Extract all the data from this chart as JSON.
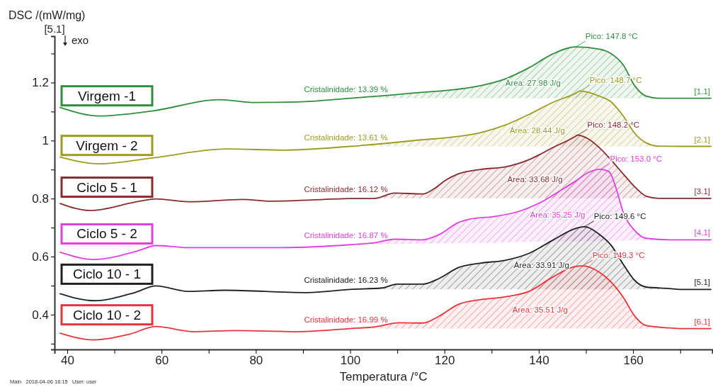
{
  "chart_data": {
    "type": "line",
    "xlabel": "Temperatura /°C",
    "ylabel": "DSC /(mW/mg)",
    "xlim": [
      37.3,
      176.8
    ],
    "ylim": [
      0.28,
      1.36
    ],
    "xticks": [
      40,
      {
        "value": 50,
        "label": null
      },
      60,
      {
        "value": 70,
        "label": null
      },
      80,
      {
        "value": 90,
        "label": null
      },
      100,
      {
        "value": 110,
        "label": null
      },
      120,
      {
        "value": 130,
        "label": null
      },
      140,
      {
        "value": 150,
        "label": null
      },
      160,
      {
        "value": 170,
        "label": null
      }
    ],
    "yticks": [
      {
        "value": 0.3,
        "label": null
      },
      0.4,
      {
        "value": 0.5,
        "label": null
      },
      0.6,
      {
        "value": 0.7,
        "label": null
      },
      0.8,
      {
        "value": 0.9,
        "label": null
      },
      1.0,
      {
        "value": 1.1,
        "label": null
      },
      1.2,
      {
        "value": 1.3,
        "label": null
      }
    ],
    "series": [
      {
        "name": "Virgem -1",
        "color": "#2f8f3f",
        "x": [
          38.5,
          46.8,
          58,
          72.3,
          79.8,
          88.8,
          100,
          112.8,
          127.8,
          132.8,
          137.9,
          142.9,
          147.8,
          152.9,
          155.3,
          157.9,
          160.4,
          162.8,
          165.4,
          170,
          176.5
        ],
        "values": [
          1.114,
          1.085,
          1.102,
          1.141,
          1.131,
          1.133,
          1.146,
          1.163,
          1.19,
          1.212,
          1.251,
          1.298,
          1.323,
          1.315,
          1.3,
          1.261,
          1.188,
          1.153,
          1.146,
          1.146,
          1.146
        ],
        "lower": [
          null,
          null,
          null,
          null,
          null,
          null,
          1.146,
          1.146,
          1.146,
          1.146,
          1.146,
          1.146,
          1.146,
          1.146,
          1.146,
          1.146,
          1.146,
          1.146,
          1.146,
          1.146,
          null
        ],
        "upper": [
          null,
          null,
          null,
          null,
          null,
          null,
          1.146,
          1.163,
          1.19,
          1.212,
          1.251,
          1.298,
          1.323,
          1.315,
          1.3,
          1.261,
          1.188,
          1.153,
          1.146,
          1.146,
          null
        ]
      },
      {
        "name": "Virgem - 2",
        "color": "#9c9c22",
        "x": [
          38.5,
          46.8,
          58,
          73.8,
          85.8,
          100,
          112.8,
          127.8,
          132.8,
          137.9,
          142.9,
          147.8,
          148.7,
          152.9,
          155.3,
          157.9,
          160.4,
          162.8,
          165.4,
          170,
          176.5
        ],
        "values": [
          0.943,
          0.92,
          0.94,
          0.971,
          0.967,
          0.98,
          0.999,
          1.028,
          1.053,
          1.09,
          1.131,
          1.163,
          1.171,
          1.153,
          1.134,
          1.085,
          1.024,
          0.992,
          0.981,
          0.98,
          0.98
        ],
        "lower": [
          null,
          null,
          null,
          null,
          null,
          0.98,
          0.98,
          0.98,
          0.98,
          0.98,
          0.98,
          0.98,
          0.98,
          0.98,
          0.98,
          0.98,
          0.98,
          0.98,
          0.98,
          0.98,
          null
        ],
        "upper": [
          null,
          null,
          null,
          null,
          null,
          0.98,
          0.999,
          1.028,
          1.053,
          1.09,
          1.131,
          1.163,
          1.171,
          1.153,
          1.134,
          1.085,
          1.024,
          0.992,
          0.981,
          0.98,
          null
        ]
      },
      {
        "name": "Ciclo 5 - 1",
        "color": "#8b2a2e",
        "x": [
          38.5,
          44.8,
          55.3,
          58.8,
          65.8,
          77.2,
          83.2,
          100,
          105.3,
          109.4,
          115.4,
          117.8,
          120.3,
          122.9,
          127.8,
          132.8,
          137.9,
          142.9,
          147.8,
          148.2,
          150.4,
          152.9,
          155.3,
          157.9,
          160.4,
          162.8,
          165.4,
          170,
          176.5
        ],
        "values": [
          0.783,
          0.759,
          0.791,
          0.799,
          0.789,
          0.797,
          0.791,
          0.8,
          0.801,
          0.819,
          0.816,
          0.834,
          0.864,
          0.885,
          0.901,
          0.909,
          0.934,
          0.975,
          1.015,
          1.019,
          1.007,
          0.975,
          0.934,
          0.885,
          0.84,
          0.808,
          0.801,
          0.801,
          0.801
        ],
        "lower": [
          null,
          null,
          null,
          null,
          null,
          null,
          null,
          0.801,
          0.801,
          0.801,
          0.801,
          0.801,
          0.801,
          0.801,
          0.801,
          0.801,
          0.801,
          0.801,
          0.801,
          0.801,
          0.801,
          0.801,
          0.801,
          0.801,
          0.801,
          0.801,
          0.801,
          0.801,
          null
        ],
        "upper": [
          null,
          null,
          null,
          null,
          null,
          null,
          null,
          0.801,
          0.801,
          0.819,
          0.816,
          0.834,
          0.864,
          0.885,
          0.901,
          0.909,
          0.934,
          0.975,
          1.015,
          1.019,
          1.007,
          0.975,
          0.934,
          0.885,
          0.84,
          0.808,
          0.801,
          0.801,
          null
        ]
      },
      {
        "name": "Ciclo 5 - 2",
        "color": "#e040e0",
        "x": [
          38.5,
          45.7,
          54.8,
          58.8,
          65.8,
          85.8,
          100,
          105.3,
          109.4,
          115.4,
          118.9,
          122.9,
          125.4,
          130.4,
          135.4,
          140.4,
          145.4,
          147.8,
          150.4,
          153.0,
          154.9,
          156.4,
          157.9,
          160.4,
          162.8,
          167.8,
          170,
          176.5
        ],
        "values": [
          0.615,
          0.59,
          0.619,
          0.638,
          0.631,
          0.631,
          0.641,
          0.648,
          0.66,
          0.658,
          0.676,
          0.717,
          0.729,
          0.738,
          0.754,
          0.787,
          0.836,
          0.86,
          0.889,
          0.901,
          0.893,
          0.836,
          0.754,
          0.689,
          0.663,
          0.658,
          0.658,
          0.658
        ],
        "lower": [
          null,
          null,
          null,
          null,
          null,
          null,
          0.641,
          0.642,
          0.643,
          0.645,
          0.646,
          0.647,
          0.647,
          0.648,
          0.65,
          0.651,
          0.652,
          0.653,
          0.653,
          0.654,
          0.654,
          0.655,
          0.655,
          0.656,
          0.656,
          0.657,
          0.658,
          null
        ],
        "upper": [
          null,
          null,
          null,
          null,
          null,
          null,
          0.641,
          0.648,
          0.66,
          0.658,
          0.676,
          0.717,
          0.729,
          0.738,
          0.754,
          0.787,
          0.836,
          0.86,
          0.889,
          0.901,
          0.893,
          0.836,
          0.754,
          0.689,
          0.663,
          0.658,
          0.658,
          null
        ]
      },
      {
        "name": "Ciclo 10 - 1",
        "color": "#202020",
        "x": [
          38.5,
          45.7,
          54.3,
          58.8,
          65.8,
          73.3,
          90.8,
          100,
          106.8,
          109.9,
          115.4,
          118.9,
          122.9,
          127.8,
          132.8,
          137.9,
          142.9,
          147.8,
          149.6,
          152.9,
          155.3,
          157.9,
          160.4,
          162.8,
          167.8,
          170,
          176.5
        ],
        "values": [
          0.472,
          0.448,
          0.476,
          0.499,
          0.48,
          0.484,
          0.476,
          0.487,
          0.492,
          0.505,
          0.505,
          0.525,
          0.562,
          0.578,
          0.587,
          0.611,
          0.656,
          0.697,
          0.703,
          0.676,
          0.64,
          0.574,
          0.517,
          0.495,
          0.49,
          0.487,
          0.487
        ],
        "lower": [
          null,
          null,
          null,
          null,
          null,
          null,
          null,
          0.487,
          0.487,
          0.487,
          0.487,
          0.487,
          0.487,
          0.487,
          0.487,
          0.487,
          0.487,
          0.487,
          0.487,
          0.487,
          0.487,
          0.487,
          0.487,
          0.487,
          0.487,
          0.487,
          null
        ],
        "upper": [
          null,
          null,
          null,
          null,
          null,
          null,
          null,
          0.487,
          0.492,
          0.505,
          0.505,
          0.525,
          0.562,
          0.578,
          0.587,
          0.611,
          0.656,
          0.697,
          0.703,
          0.676,
          0.64,
          0.574,
          0.517,
          0.495,
          0.49,
          0.487,
          null
        ]
      },
      {
        "name": "Ciclo 10 - 2",
        "color": "#e8333a",
        "x": [
          38.5,
          45.7,
          53.3,
          58.8,
          66.9,
          75.8,
          88.3,
          100,
          105.3,
          110.4,
          115.4,
          118.9,
          122.9,
          127.8,
          132.8,
          137.9,
          142.9,
          147.8,
          149.3,
          152.9,
          155.3,
          157.9,
          160.4,
          162.8,
          167.8,
          170,
          176.5
        ],
        "values": [
          0.336,
          0.313,
          0.333,
          0.359,
          0.341,
          0.345,
          0.341,
          0.352,
          0.358,
          0.372,
          0.371,
          0.395,
          0.435,
          0.452,
          0.461,
          0.48,
          0.529,
          0.566,
          0.568,
          0.546,
          0.513,
          0.46,
          0.394,
          0.362,
          0.354,
          0.352,
          0.352
        ],
        "lower": [
          null,
          null,
          null,
          null,
          null,
          null,
          null,
          0.352,
          0.352,
          0.352,
          0.352,
          0.352,
          0.352,
          0.352,
          0.352,
          0.352,
          0.352,
          0.352,
          0.352,
          0.352,
          0.352,
          0.352,
          0.352,
          0.352,
          0.352,
          0.352,
          null
        ],
        "upper": [
          null,
          null,
          null,
          null,
          null,
          null,
          null,
          0.352,
          0.358,
          0.372,
          0.371,
          0.395,
          0.435,
          0.452,
          0.461,
          0.48,
          0.529,
          0.566,
          0.568,
          0.546,
          0.513,
          0.46,
          0.394,
          0.362,
          0.354,
          0.352,
          null
        ]
      }
    ],
    "annotations": [
      "Cristalinidade: 13.39 %",
      "Área: 27.98 J/g",
      {
        "text": "Pico: 147.8 °C",
        "x": 147.8,
        "y": 1.323
      },
      "[1.1]",
      "Cristalinidade: 13.61 %",
      "Área: 28.44 J/g",
      {
        "text": "Pico: 148.7 °C",
        "x": 148.7,
        "y": 1.171
      },
      "[2.1]",
      "Cristalinidade: 16.12 %",
      "Área: 33.68 J/g",
      {
        "text": "Pico: 148.2 °C",
        "x": 148.2,
        "y": 1.019
      },
      "[3.1]",
      "Cristalinidade: 16.87 %",
      "Área: 35.25 J/g",
      {
        "text": "Pico: 153.0 °C",
        "x": 153.0,
        "y": 0.901
      },
      "[4.1]",
      "Cristalinidade: 16.23 %",
      "Área: 33.91 J/g",
      {
        "text": "Pico: 149.6 °C",
        "x": 149.6,
        "y": 0.703
      },
      "[5.1]",
      "Cristalinidade: 16.99 %",
      "Área: 35.51 J/g",
      {
        "text": "Pico: 149.3 °C",
        "x": 149.3,
        "y": 0.568
      },
      "[6.1]",
      "[5.1]",
      "exo",
      "Main   2018-04-06 16:15   User: user"
    ]
  }
}
